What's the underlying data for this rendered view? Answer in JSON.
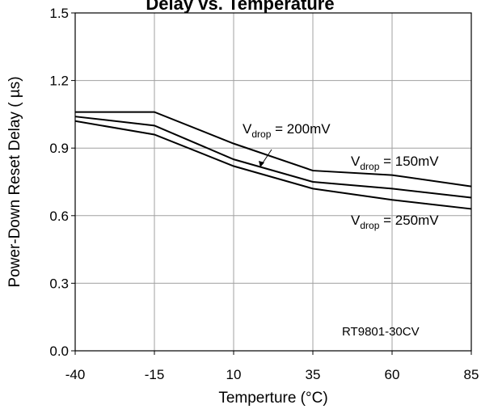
{
  "chart_data": {
    "type": "line",
    "title": "Delay vs. Temperature",
    "xlabel": "Temperture (°C)",
    "ylabel": "Power-Down Reset Delay ( µs)",
    "x": [
      -40,
      -15,
      10,
      35,
      60,
      85
    ],
    "xticks": [
      "-40",
      "-15",
      "10",
      "35",
      "60",
      "85"
    ],
    "yticks": [
      "0.0",
      "0.3",
      "0.6",
      "0.9",
      "1.2",
      "1.5"
    ],
    "xlim": [
      -40,
      85
    ],
    "ylim": [
      0,
      1.5
    ],
    "grid": true,
    "series": [
      {
        "name": "V_drop = 150mV",
        "values": [
          1.06,
          1.06,
          0.92,
          0.8,
          0.78,
          0.73
        ]
      },
      {
        "name": "V_drop = 200mV",
        "values": [
          1.04,
          1.0,
          0.85,
          0.75,
          0.72,
          0.68
        ]
      },
      {
        "name": "V_drop = 250mV",
        "values": [
          1.02,
          0.96,
          0.82,
          0.72,
          0.67,
          0.63
        ]
      }
    ],
    "line_color": "#000000",
    "annotations": {
      "v150_main": "V",
      "v150_sub": "drop",
      "v150_rest": " = 150mV",
      "v200_main": "V",
      "v200_sub": "drop",
      "v200_rest": " = 200mV",
      "v250_main": "V",
      "v250_sub": "drop",
      "v250_rest": " = 250mV",
      "device": "RT9801-30CV"
    }
  }
}
